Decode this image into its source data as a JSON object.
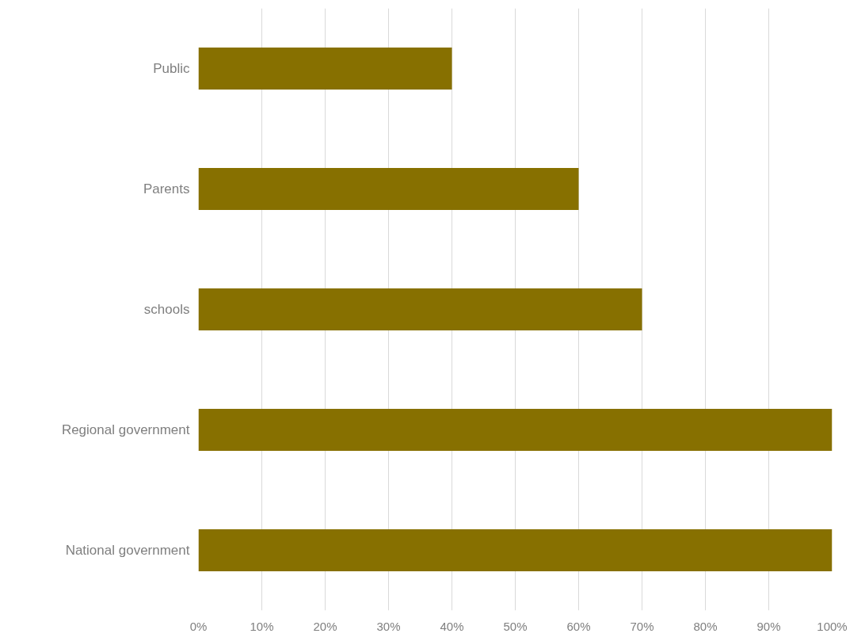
{
  "chart_data": {
    "type": "bar",
    "orientation": "horizontal",
    "categories": [
      "Public",
      "Parents",
      "schools",
      "Regional government",
      "National government"
    ],
    "values": [
      40,
      60,
      70,
      100,
      100
    ],
    "color": "#877000",
    "xlim": [
      0,
      100
    ],
    "xticks": [
      {
        "value": 0,
        "label": "0%"
      },
      {
        "value": 10,
        "label": "10%"
      },
      {
        "value": 20,
        "label": "20%"
      },
      {
        "value": 30,
        "label": "30%"
      },
      {
        "value": 40,
        "label": "40%"
      },
      {
        "value": 50,
        "label": "50%"
      },
      {
        "value": 60,
        "label": "60%"
      },
      {
        "value": 70,
        "label": "70%"
      },
      {
        "value": 80,
        "label": "80%"
      },
      {
        "value": 90,
        "label": "90%"
      },
      {
        "value": 100,
        "label": "100%"
      }
    ],
    "grid": "x"
  }
}
